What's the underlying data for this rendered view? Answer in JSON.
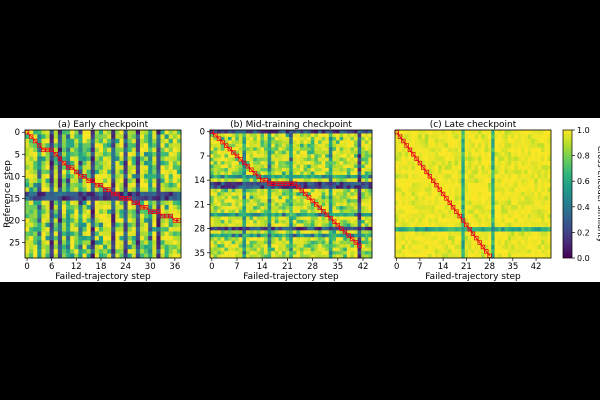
{
  "colors": {
    "background": "#000000",
    "figure_bg": "#ffffff",
    "path": "#e8001c",
    "cmap": [
      "#440154",
      "#482878",
      "#3e4989",
      "#31688e",
      "#26828e",
      "#1f9e89",
      "#35b779",
      "#6ece58",
      "#b5de2b",
      "#fde725"
    ]
  },
  "chart_data": [
    {
      "type": "heatmap",
      "title": "(a) Early checkpoint",
      "xlabel": "Failed-trajectory step",
      "ylabel": "Reference step",
      "xticks": [
        0,
        6,
        12,
        18,
        24,
        30,
        36
      ],
      "yticks": [
        0,
        5,
        10,
        15,
        20,
        25
      ],
      "cols": 38,
      "rows": 29,
      "seed": 11,
      "dark_cols": [
        6,
        8,
        16,
        21,
        24,
        27,
        32
      ],
      "dark_rows": [
        14,
        15
      ],
      "mid_cols": [
        3,
        10,
        13,
        30
      ],
      "noise": 0.35,
      "alignment_path": [
        [
          0,
          0
        ],
        [
          1,
          1
        ],
        [
          2,
          2
        ],
        [
          3,
          3
        ],
        [
          4,
          4
        ],
        [
          5,
          4
        ],
        [
          6,
          4
        ],
        [
          7,
          5
        ],
        [
          8,
          6
        ],
        [
          9,
          7
        ],
        [
          10,
          8
        ],
        [
          11,
          8
        ],
        [
          12,
          9
        ],
        [
          13,
          10
        ],
        [
          14,
          10
        ],
        [
          15,
          11
        ],
        [
          16,
          11
        ],
        [
          17,
          12
        ],
        [
          18,
          12
        ],
        [
          19,
          13
        ],
        [
          20,
          13
        ],
        [
          21,
          14
        ],
        [
          22,
          14
        ],
        [
          23,
          15
        ],
        [
          24,
          15
        ],
        [
          25,
          15
        ],
        [
          26,
          16
        ],
        [
          27,
          16
        ],
        [
          28,
          17
        ],
        [
          29,
          17
        ],
        [
          30,
          18
        ],
        [
          31,
          18
        ],
        [
          32,
          18
        ],
        [
          33,
          19
        ],
        [
          34,
          19
        ],
        [
          35,
          19
        ],
        [
          36,
          20
        ],
        [
          37,
          20
        ]
      ]
    },
    {
      "type": "heatmap",
      "title": "(b) Mid-training checkpoint",
      "xlabel": "Failed-trajectory step",
      "ylabel": "",
      "xticks": [
        0,
        7,
        14,
        21,
        28,
        35,
        42
      ],
      "yticks": [
        0,
        7,
        14,
        21,
        28,
        35
      ],
      "cols": 45,
      "rows": 37,
      "seed": 23,
      "dark_cols": [
        41
      ],
      "dark_rows": [
        0,
        15,
        16,
        28
      ],
      "mid_cols": [
        9,
        16,
        22,
        33
      ],
      "mid_rows": [
        13,
        24,
        30
      ],
      "noise": 0.28,
      "alignment_path": [
        [
          0,
          0
        ],
        [
          1,
          1
        ],
        [
          2,
          2
        ],
        [
          3,
          3
        ],
        [
          4,
          4
        ],
        [
          5,
          5
        ],
        [
          6,
          6
        ],
        [
          7,
          7
        ],
        [
          8,
          8
        ],
        [
          9,
          9
        ],
        [
          10,
          10
        ],
        [
          11,
          11
        ],
        [
          12,
          12
        ],
        [
          13,
          13
        ],
        [
          14,
          14
        ],
        [
          15,
          14
        ],
        [
          16,
          15
        ],
        [
          17,
          15
        ],
        [
          18,
          15
        ],
        [
          19,
          15
        ],
        [
          20,
          15
        ],
        [
          21,
          15
        ],
        [
          22,
          15
        ],
        [
          23,
          15
        ],
        [
          24,
          16
        ],
        [
          25,
          17
        ],
        [
          26,
          18
        ],
        [
          27,
          19
        ],
        [
          28,
          20
        ],
        [
          29,
          21
        ],
        [
          30,
          22
        ],
        [
          31,
          23
        ],
        [
          32,
          24
        ],
        [
          33,
          25
        ],
        [
          34,
          26
        ],
        [
          35,
          27
        ],
        [
          36,
          28
        ],
        [
          37,
          29
        ],
        [
          38,
          30
        ],
        [
          39,
          31
        ],
        [
          40,
          32
        ],
        [
          41,
          33
        ]
      ]
    },
    {
      "type": "heatmap",
      "title": "(c) Late checkpoint",
      "xlabel": "Failed-trajectory step",
      "ylabel": "",
      "xticks": [
        0,
        7,
        14,
        21,
        28,
        35,
        42
      ],
      "yticks": [],
      "cols": 47,
      "rows": 29,
      "seed": 37,
      "dark_cols": [],
      "dark_rows": [],
      "mid_cols": [
        20,
        29
      ],
      "mid_rows": [
        22
      ],
      "noise": 0.08,
      "alignment_path": [
        [
          0,
          0
        ],
        [
          1,
          1
        ],
        [
          2,
          2
        ],
        [
          3,
          3
        ],
        [
          4,
          4
        ],
        [
          5,
          5
        ],
        [
          6,
          6
        ],
        [
          7,
          7
        ],
        [
          8,
          8
        ],
        [
          9,
          9
        ],
        [
          10,
          10
        ],
        [
          11,
          11
        ],
        [
          12,
          12
        ],
        [
          13,
          13
        ],
        [
          14,
          14
        ],
        [
          15,
          15
        ],
        [
          16,
          16
        ],
        [
          17,
          17
        ],
        [
          18,
          18
        ],
        [
          19,
          19
        ],
        [
          20,
          20
        ],
        [
          21,
          21
        ],
        [
          22,
          22
        ],
        [
          23,
          23
        ],
        [
          24,
          24
        ],
        [
          25,
          25
        ],
        [
          26,
          26
        ],
        [
          27,
          27
        ],
        [
          28,
          28
        ]
      ]
    }
  ],
  "colorbar": {
    "label": "Cross-encoder similarity",
    "ticks": [
      "0.0",
      "0.2",
      "0.4",
      "0.6",
      "0.8",
      "1.0"
    ],
    "range": [
      0,
      1
    ]
  }
}
